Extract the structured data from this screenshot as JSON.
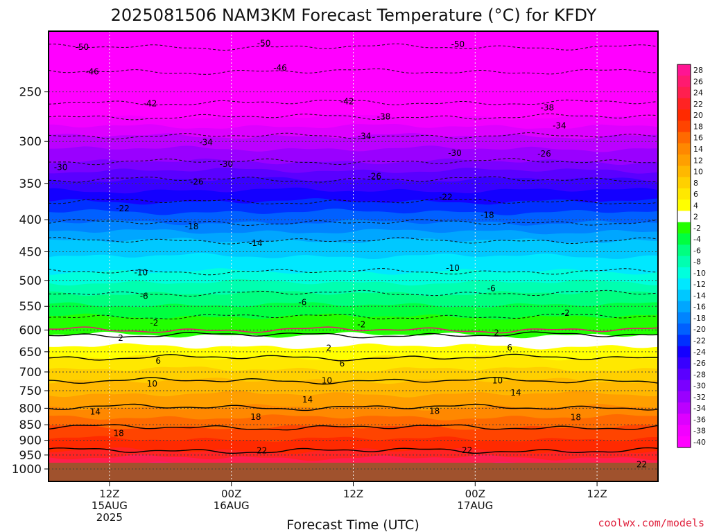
{
  "chart_data": {
    "type": "heatmap",
    "title": "2025081506 NAM3KM Forecast Temperature (°C) for KFDY",
    "xlabel": "Forecast Time (UTC)",
    "ylabel": "",
    "watermark": "coolwx.com/models",
    "y_scale": "log",
    "y_inverted": true,
    "ylim": [
      1000,
      200
    ],
    "x_range_hours": [
      6,
      66
    ],
    "y_ticks": [
      250,
      300,
      350,
      400,
      450,
      500,
      550,
      600,
      650,
      700,
      750,
      800,
      850,
      900,
      950,
      1000
    ],
    "x_ticks": [
      {
        "hour": 12,
        "lines": [
          "12Z",
          "15AUG",
          "2025"
        ]
      },
      {
        "hour": 24,
        "lines": [
          "00Z",
          "16AUG"
        ]
      },
      {
        "hour": 36,
        "lines": [
          "12Z"
        ]
      },
      {
        "hour": 48,
        "lines": [
          "00Z",
          "17AUG"
        ]
      },
      {
        "hour": 60,
        "lines": [
          "12Z"
        ]
      }
    ],
    "grid": true,
    "colorbar": {
      "placement": "right",
      "levels": [
        28,
        26,
        24,
        22,
        20,
        18,
        16,
        14,
        12,
        10,
        8,
        6,
        4,
        2,
        -2,
        -4,
        -6,
        -8,
        -10,
        -12,
        -14,
        -16,
        -18,
        -20,
        -22,
        -24,
        -26,
        -28,
        -30,
        -32,
        -34,
        -36,
        -38,
        -40
      ],
      "colors": [
        "#ff1493",
        "#ff1a70",
        "#ff1f4f",
        "#ff2323",
        "#ff2a00",
        "#ff4400",
        "#ff6a00",
        "#ff8800",
        "#ff9f00",
        "#ffb800",
        "#ffd000",
        "#ffe800",
        "#ffff00",
        "#ffffff",
        "#22ff00",
        "#00ff40",
        "#00ff80",
        "#00ffb0",
        "#00ffdd",
        "#00e8ff",
        "#00c8ff",
        "#00a6ff",
        "#0084ff",
        "#0060ff",
        "#0030ff",
        "#1400ff",
        "#3800ff",
        "#5a00ff",
        "#7a00ff",
        "#9a00ff",
        "#bb00ff",
        "#dd00ff",
        "#f200ff",
        "#ff00ff"
      ]
    },
    "contours": [
      {
        "value": -50,
        "pressure": 212
      },
      {
        "value": -46,
        "pressure": 232
      },
      {
        "value": -42,
        "pressure": 260
      },
      {
        "value": -38,
        "pressure": 274
      },
      {
        "value": -34,
        "pressure": 294
      },
      {
        "value": -30,
        "pressure": 323
      },
      {
        "value": -26,
        "pressure": 345
      },
      {
        "value": -22,
        "pressure": 374
      },
      {
        "value": -18,
        "pressure": 404
      },
      {
        "value": -14,
        "pressure": 432
      },
      {
        "value": -10,
        "pressure": 484
      },
      {
        "value": -6,
        "pressure": 524
      },
      {
        "value": -2,
        "pressure": 571
      },
      {
        "value": 2,
        "pressure": 611
      },
      {
        "value": 6,
        "pressure": 664
      },
      {
        "value": 10,
        "pressure": 723
      },
      {
        "value": 14,
        "pressure": 797
      },
      {
        "value": 18,
        "pressure": 858
      },
      {
        "value": 22,
        "pressure": 935
      }
    ],
    "contour_labels": [
      {
        "text": "-50",
        "hour": 9.3,
        "p": 212
      },
      {
        "text": "-50",
        "hour": 27.2,
        "p": 209
      },
      {
        "text": "-50",
        "hour": 46.3,
        "p": 210
      },
      {
        "text": "-46",
        "hour": 10.3,
        "p": 232
      },
      {
        "text": "-46",
        "hour": 28.8,
        "p": 229
      },
      {
        "text": "-42",
        "hour": 16.0,
        "p": 261
      },
      {
        "text": "-42",
        "hour": 35.4,
        "p": 259
      },
      {
        "text": "-38",
        "hour": 39.0,
        "p": 274
      },
      {
        "text": "-38",
        "hour": 55.1,
        "p": 265
      },
      {
        "text": "-34",
        "hour": 21.5,
        "p": 301
      },
      {
        "text": "-34",
        "hour": 37.1,
        "p": 294
      },
      {
        "text": "-34",
        "hour": 56.3,
        "p": 283
      },
      {
        "text": "-30",
        "hour": 7.2,
        "p": 330
      },
      {
        "text": "-30",
        "hour": 23.5,
        "p": 326
      },
      {
        "text": "-30",
        "hour": 46.0,
        "p": 313
      },
      {
        "text": "-26",
        "hour": 20.6,
        "p": 348
      },
      {
        "text": "-26",
        "hour": 38.1,
        "p": 341
      },
      {
        "text": "-26",
        "hour": 54.8,
        "p": 314
      },
      {
        "text": "-22",
        "hour": 13.3,
        "p": 384
      },
      {
        "text": "-22",
        "hour": 45.1,
        "p": 368
      },
      {
        "text": "-18",
        "hour": 20.1,
        "p": 410
      },
      {
        "text": "-18",
        "hour": 49.2,
        "p": 393
      },
      {
        "text": "-14",
        "hour": 26.4,
        "p": 436
      },
      {
        "text": "-10",
        "hour": 15.1,
        "p": 486
      },
      {
        "text": "-10",
        "hour": 45.8,
        "p": 478
      },
      {
        "text": "-6",
        "hour": 15.4,
        "p": 530
      },
      {
        "text": "-6",
        "hour": 31.0,
        "p": 542
      },
      {
        "text": "-6",
        "hour": 49.6,
        "p": 515
      },
      {
        "text": "-2",
        "hour": 16.4,
        "p": 584
      },
      {
        "text": "-2",
        "hour": 36.8,
        "p": 588
      },
      {
        "text": "-2",
        "hour": 56.9,
        "p": 564
      },
      {
        "text": "2",
        "hour": 13.1,
        "p": 618
      },
      {
        "text": "2",
        "hour": 33.6,
        "p": 641
      },
      {
        "text": "2",
        "hour": 50.1,
        "p": 606
      },
      {
        "text": "6",
        "hour": 16.8,
        "p": 672
      },
      {
        "text": "6",
        "hour": 34.9,
        "p": 679
      },
      {
        "text": "6",
        "hour": 51.4,
        "p": 640
      },
      {
        "text": "10",
        "hour": 16.2,
        "p": 731
      },
      {
        "text": "10",
        "hour": 33.4,
        "p": 723
      },
      {
        "text": "10",
        "hour": 50.2,
        "p": 723
      },
      {
        "text": "14",
        "hour": 10.6,
        "p": 810
      },
      {
        "text": "14",
        "hour": 31.5,
        "p": 775
      },
      {
        "text": "14",
        "hour": 52.0,
        "p": 756
      },
      {
        "text": "18",
        "hour": 12.9,
        "p": 877
      },
      {
        "text": "18",
        "hour": 26.4,
        "p": 826
      },
      {
        "text": "18",
        "hour": 44.0,
        "p": 808
      },
      {
        "text": "18",
        "hour": 57.9,
        "p": 827
      },
      {
        "text": "22",
        "hour": 27.0,
        "p": 935
      },
      {
        "text": "22",
        "hour": 47.2,
        "p": 933
      },
      {
        "text": "22",
        "hour": 64.4,
        "p": 983
      }
    ]
  }
}
